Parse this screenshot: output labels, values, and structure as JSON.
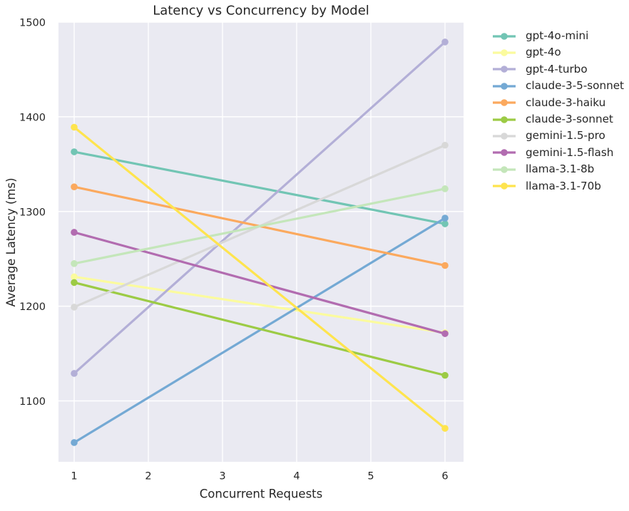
{
  "chart_data": {
    "type": "line",
    "title": "Latency vs Concurrency by Model",
    "xlabel": "Concurrent Requests",
    "ylabel": "Average Latency (ms)",
    "x": [
      1,
      6
    ],
    "xticks": [
      1,
      2,
      3,
      4,
      5,
      6
    ],
    "yticks": [
      1100,
      1200,
      1300,
      1400,
      1500
    ],
    "xlim": [
      0.79,
      6.25
    ],
    "ylim": [
      1036,
      1500
    ],
    "grid": true,
    "grid_color": "#ffffff",
    "plot_bg": "#eaeaf2",
    "text_color": "#262626",
    "legend_position": "right-outside",
    "series": [
      {
        "name": "gpt-4o-mini",
        "color": "#72c5b4",
        "values": [
          1363,
          1287
        ]
      },
      {
        "name": "gpt-4o",
        "color": "#fbfb9e",
        "values": [
          1231,
          1172
        ]
      },
      {
        "name": "gpt-4-turbo",
        "color": "#b3afd7",
        "values": [
          1129,
          1479
        ]
      },
      {
        "name": "claude-3-5-sonnet",
        "color": "#74a9d4",
        "values": [
          1056,
          1293
        ]
      },
      {
        "name": "claude-3-haiku",
        "color": "#fba95e",
        "values": [
          1326,
          1243
        ]
      },
      {
        "name": "claude-3-sonnet",
        "color": "#9ccb45",
        "values": [
          1225,
          1127
        ]
      },
      {
        "name": "gemini-1.5-pro",
        "color": "#d8d8d8",
        "values": [
          1199,
          1370
        ]
      },
      {
        "name": "gemini-1.5-flash",
        "color": "#b26cb0",
        "values": [
          1278,
          1171
        ]
      },
      {
        "name": "llama-3.1-8b",
        "color": "#c4e6ba",
        "values": [
          1245,
          1324
        ]
      },
      {
        "name": "llama-3.1-70b",
        "color": "#fee44e",
        "values": [
          1389,
          1071
        ]
      }
    ]
  }
}
